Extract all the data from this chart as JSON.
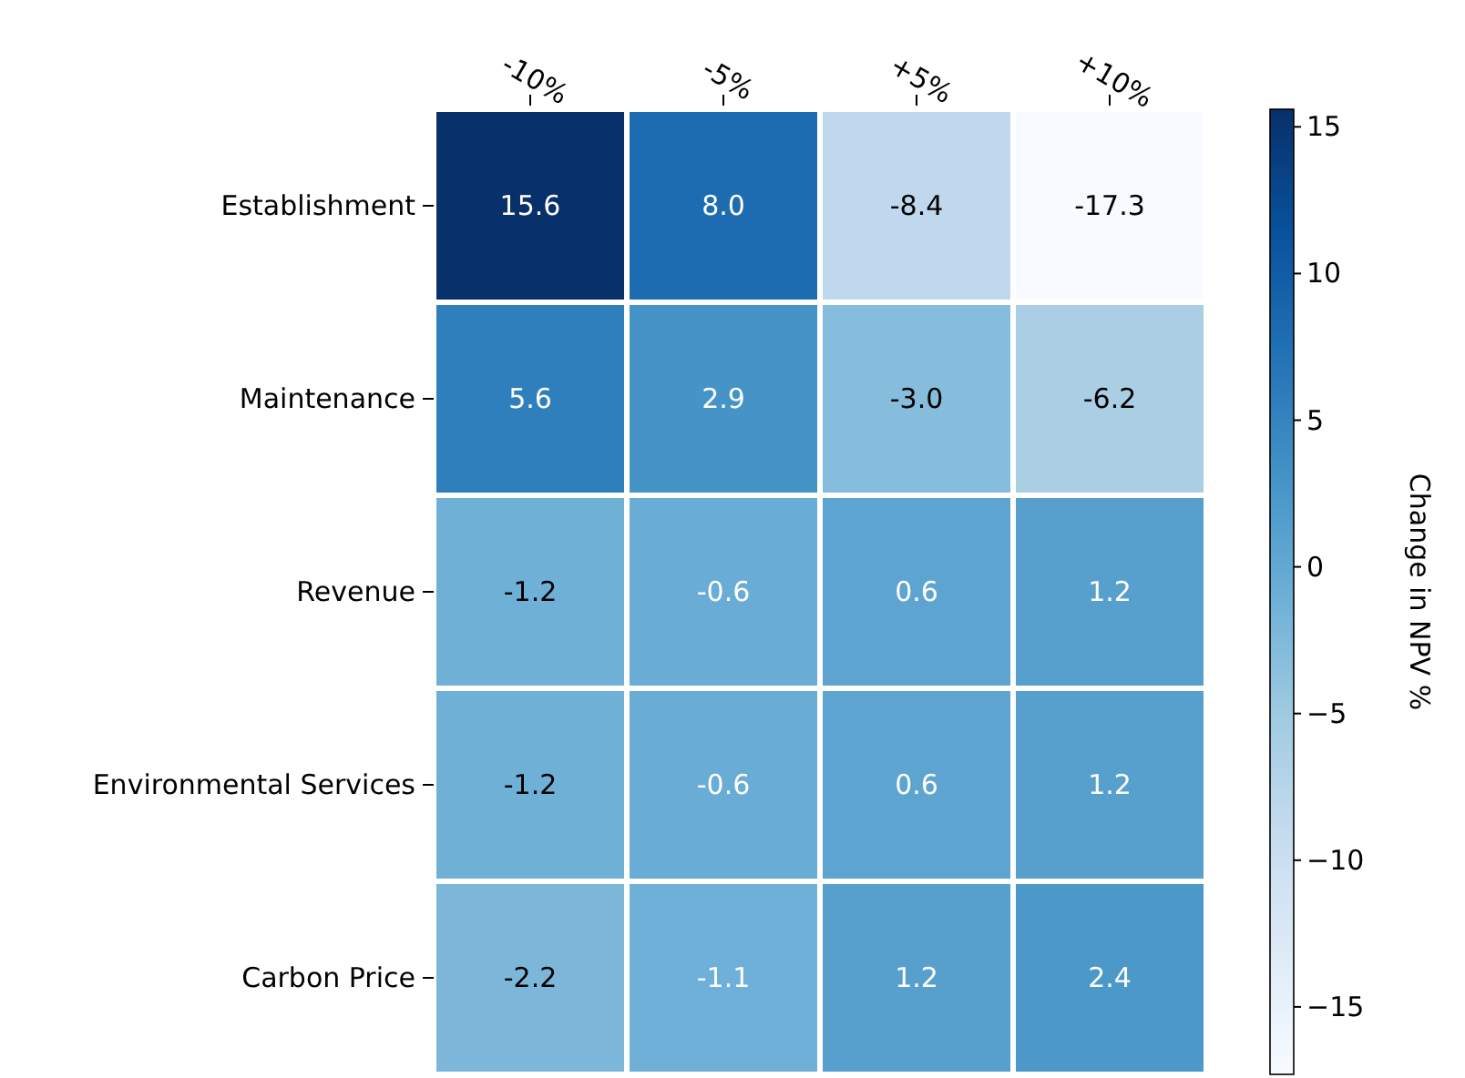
{
  "chart_data": {
    "type": "heatmap",
    "categories": [
      "-10%",
      "-5%",
      "+5%",
      "+10%"
    ],
    "y_categories": [
      "Establishment",
      "Maintenance",
      "Revenue",
      "Environmental Services",
      "Carbon Price"
    ],
    "cells": [
      [
        15.6,
        8.0,
        -8.4,
        -17.3
      ],
      [
        5.6,
        2.9,
        -3.0,
        -6.2
      ],
      [
        -1.2,
        -0.6,
        0.6,
        1.2
      ],
      [
        -1.2,
        -0.6,
        0.6,
        1.2
      ],
      [
        -2.2,
        -1.1,
        1.2,
        2.4
      ]
    ],
    "cell_labels": [
      [
        "15.6",
        "8.0",
        "-8.4",
        "-17.3"
      ],
      [
        "5.6",
        "2.9",
        "-3.0",
        "-6.2"
      ],
      [
        "-1.2",
        "-0.6",
        "0.6",
        "1.2"
      ],
      [
        "-1.2",
        "-0.6",
        "0.6",
        "1.2"
      ],
      [
        "-2.2",
        "-1.1",
        "1.2",
        "2.4"
      ]
    ],
    "data_labels": true,
    "clabel": "Change in NPV %",
    "clim": [
      -17.3,
      15.6
    ],
    "cticks": [
      -15,
      -10,
      -5,
      0,
      5,
      10,
      15
    ]
  }
}
